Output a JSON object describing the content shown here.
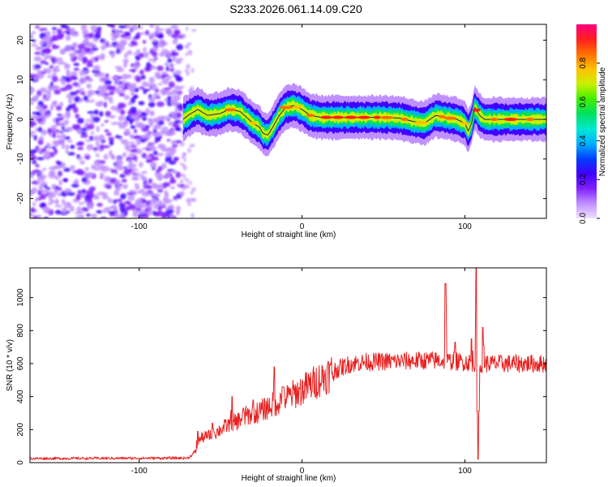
{
  "title": "S233.2026.061.14.09.C20",
  "chart_data": [
    {
      "type": "heatmap",
      "name": "spectrogram",
      "xlabel": "Height of straight line (km)",
      "ylabel": "Frequency (Hz)",
      "xlim": [
        -167,
        150
      ],
      "ylim": [
        -25,
        24
      ],
      "xticks": [
        -100,
        0,
        100
      ],
      "yticks": [
        -20,
        -10,
        0,
        10,
        20
      ],
      "noise_region_x": [
        -167,
        -74
      ],
      "ridge": [
        [
          -73,
          0
        ],
        [
          -70,
          1
        ],
        [
          -64,
          2.5
        ],
        [
          -58,
          1
        ],
        [
          -50,
          1.5
        ],
        [
          -45,
          2.5
        ],
        [
          -38,
          2
        ],
        [
          -34,
          0.5
        ],
        [
          -30,
          -1
        ],
        [
          -26,
          -2
        ],
        [
          -24,
          -3.5
        ],
        [
          -21,
          -4
        ],
        [
          -18,
          -2
        ],
        [
          -14,
          1
        ],
        [
          -10,
          3
        ],
        [
          -5,
          3.5
        ],
        [
          0,
          2.5
        ],
        [
          5,
          1
        ],
        [
          12,
          0.5
        ],
        [
          30,
          0.5
        ],
        [
          50,
          0.5
        ],
        [
          60,
          0.3
        ],
        [
          68,
          -0.5
        ],
        [
          75,
          -1
        ],
        [
          82,
          1
        ],
        [
          88,
          0.5
        ],
        [
          95,
          0
        ],
        [
          100,
          -1
        ],
        [
          102,
          -3
        ],
        [
          104,
          -1
        ],
        [
          106,
          3
        ],
        [
          109,
          1
        ],
        [
          112,
          0
        ],
        [
          120,
          0
        ],
        [
          135,
          0
        ],
        [
          150,
          0
        ]
      ],
      "colorbar": {
        "label": "Normalized spectral amplitude",
        "range": [
          0,
          1
        ],
        "ticks": [
          0.0,
          0.2,
          0.4,
          0.6,
          0.8
        ],
        "tick_labels": [
          "0.0",
          "0.2",
          "0.4",
          "0.6",
          "0.8"
        ],
        "stops": [
          "#f0e0ff",
          "#c090ff",
          "#8020ff",
          "#4000ff",
          "#0040ff",
          "#00b0ff",
          "#00e8d0",
          "#00e060",
          "#40f000",
          "#c8f000",
          "#ffc000",
          "#ff7000",
          "#ff2020",
          "#ff0080"
        ]
      }
    },
    {
      "type": "line",
      "name": "snr",
      "xlabel": "Height of straight line (km)",
      "ylabel": "SNR (10 * v/v)",
      "xlim": [
        -167,
        150
      ],
      "ylim": [
        0,
        1180
      ],
      "xticks": [
        -100,
        0,
        100
      ],
      "yticks": [
        0,
        200,
        400,
        600,
        800,
        1000
      ],
      "color": "#e82020",
      "envelope": [
        [
          -167,
          25
        ],
        [
          -70,
          28
        ],
        [
          -65,
          70
        ],
        [
          -62,
          150
        ],
        [
          -55,
          170
        ],
        [
          -45,
          230
        ],
        [
          -40,
          250
        ],
        [
          -35,
          280
        ],
        [
          -28,
          300
        ],
        [
          -20,
          340
        ],
        [
          -10,
          390
        ],
        [
          0,
          440
        ],
        [
          10,
          500
        ],
        [
          20,
          560
        ],
        [
          30,
          600
        ],
        [
          40,
          610
        ],
        [
          60,
          615
        ],
        [
          80,
          620
        ],
        [
          90,
          615
        ],
        [
          100,
          610
        ],
        [
          110,
          600
        ],
        [
          150,
          600
        ]
      ],
      "peaks": [
        [
          -64,
          190
        ],
        [
          -55,
          240
        ],
        [
          -43,
          400
        ],
        [
          -36,
          330
        ],
        [
          -30,
          380
        ],
        [
          -17,
          580
        ],
        [
          -12,
          460
        ],
        [
          88,
          1085
        ],
        [
          94,
          730
        ],
        [
          104,
          750
        ],
        [
          107,
          1180
        ],
        [
          108,
          20
        ],
        [
          111,
          820
        ]
      ]
    }
  ]
}
